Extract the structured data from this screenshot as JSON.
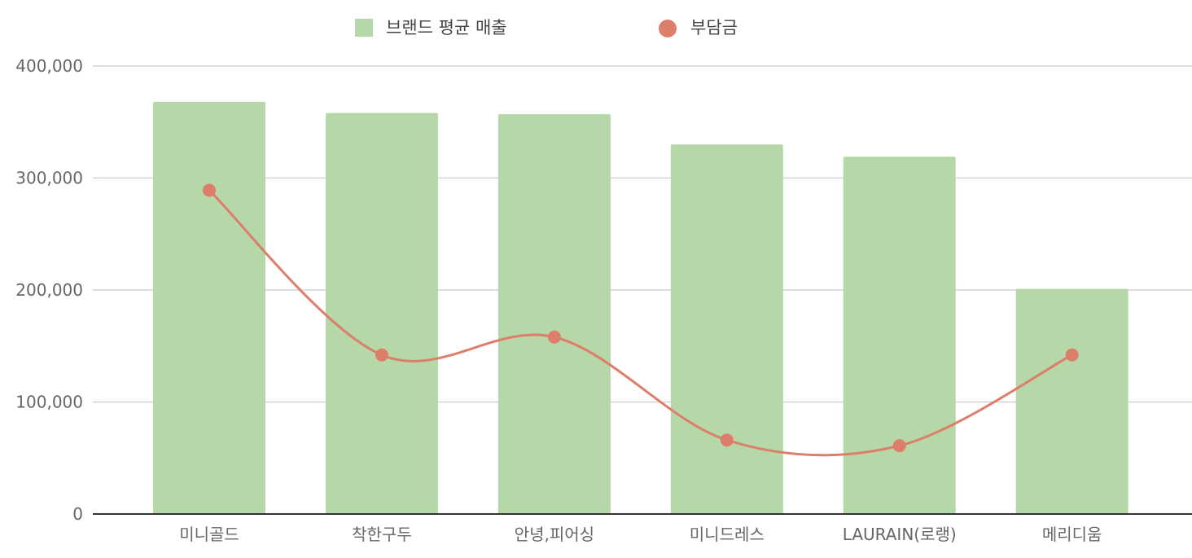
{
  "chart_data": {
    "type": "bar",
    "categories": [
      "미니골드",
      "착한구두",
      "안녕,피어싱",
      "미니드레스",
      "LAURAIN(로랭)",
      "메리디움"
    ],
    "series": [
      {
        "name": "브랜드 평균 매출",
        "type": "bar",
        "color": "#b6d7a8",
        "values": [
          368000,
          358000,
          357000,
          330000,
          319000,
          201000
        ]
      },
      {
        "name": "부담금",
        "type": "line",
        "smooth": true,
        "color": "#dd7e6b",
        "values": [
          289000,
          142000,
          158000,
          66000,
          61000,
          142000
        ]
      }
    ],
    "yticks": [
      "0",
      "100,000",
      "200,000",
      "300,000",
      "400,000"
    ],
    "ylim": [
      0,
      400000
    ],
    "grid": true,
    "legend_position": "top-center"
  }
}
